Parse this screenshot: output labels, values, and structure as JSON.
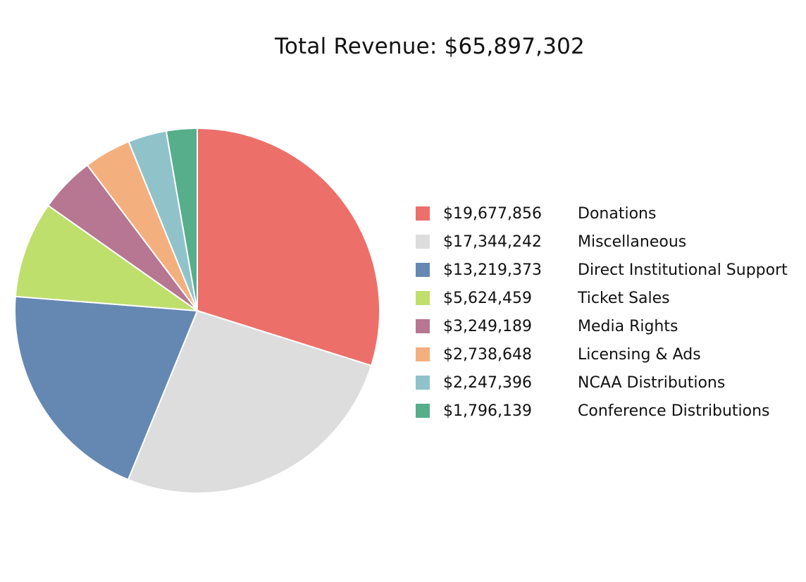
{
  "chart_data": {
    "type": "pie",
    "title": "Total Revenue: $65,897,302",
    "start_angle": "12 o'clock",
    "direction": "clockwise",
    "legend_position": "right",
    "slices": [
      {
        "label": "Donations",
        "value": 19677856,
        "value_text": "$19,677,856",
        "color": "#ec6f69"
      },
      {
        "label": "Miscellaneous",
        "value": 17344242,
        "value_text": "$17,344,242",
        "color": "#dddddd"
      },
      {
        "label": "Direct Institutional Support",
        "value": 13219373,
        "value_text": "$13,219,373",
        "color": "#6588b3"
      },
      {
        "label": "Ticket Sales",
        "value": 5624459,
        "value_text": "$5,624,459",
        "color": "#bedf6c"
      },
      {
        "label": "Media Rights",
        "value": 3249189,
        "value_text": "$3,249,189",
        "color": "#b77692"
      },
      {
        "label": "Licensing & Ads",
        "value": 2738648,
        "value_text": "$2,738,648",
        "color": "#f3b07e"
      },
      {
        "label": "NCAA Distributions",
        "value": 2247396,
        "value_text": "$2,247,396",
        "color": "#8fc3c9"
      },
      {
        "label": "Conference Distributions",
        "value": 1796139,
        "value_text": "$1,796,139",
        "color": "#56ae8b"
      }
    ]
  }
}
